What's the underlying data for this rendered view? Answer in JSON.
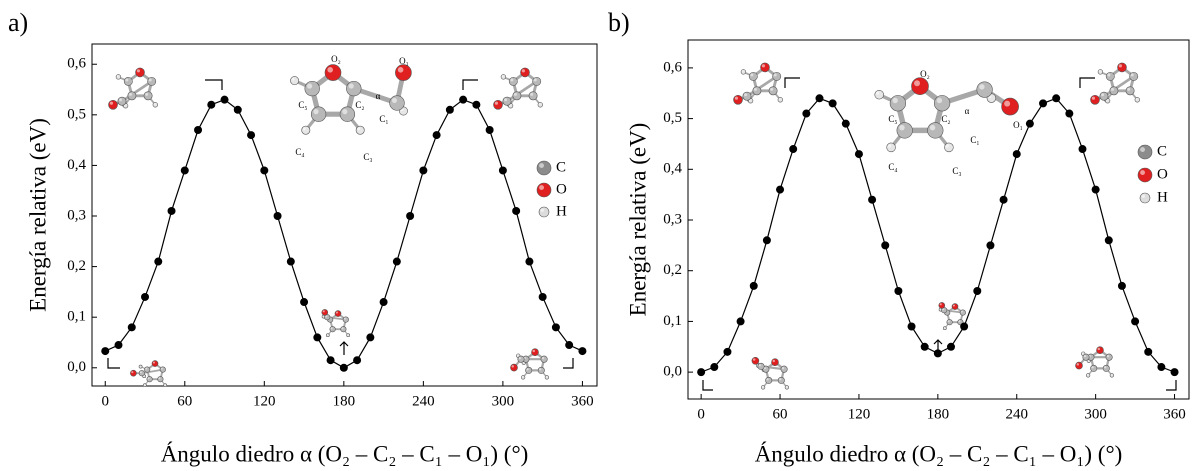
{
  "chart_data": [
    {
      "type": "line",
      "title": "a)",
      "x_label": "Ángulo diedro α (O₂ – C₂ – C₁ – O₁) (°)",
      "y_label": "Energía relativa (eV)",
      "x": [
        0,
        10,
        20,
        30,
        40,
        50,
        60,
        70,
        80,
        90,
        100,
        110,
        120,
        130,
        140,
        150,
        160,
        170,
        180,
        190,
        200,
        210,
        220,
        230,
        240,
        250,
        260,
        270,
        280,
        290,
        300,
        310,
        320,
        330,
        340,
        350,
        360
      ],
      "series": [
        {
          "color": "#000000",
          "values": [
            0.033,
            0.045,
            0.08,
            0.14,
            0.21,
            0.31,
            0.39,
            0.47,
            0.52,
            0.53,
            0.51,
            0.46,
            0.39,
            0.3,
            0.21,
            0.13,
            0.06,
            0.015,
            0.0,
            0.015,
            0.06,
            0.13,
            0.21,
            0.3,
            0.39,
            0.46,
            0.51,
            0.53,
            0.52,
            0.47,
            0.39,
            0.31,
            0.21,
            0.14,
            0.08,
            0.045,
            0.033
          ]
        }
      ],
      "xlim": [
        -10,
        371
      ],
      "xticks": [
        0,
        60,
        120,
        180,
        240,
        300,
        360
      ],
      "ylim": [
        -0.036,
        0.64
      ],
      "yticks": [
        {
          "value": 0,
          "label": "0,0"
        },
        {
          "value": 0.1,
          "label": "0,1"
        },
        {
          "value": 0.2,
          "label": "0,2"
        },
        {
          "value": 0.3,
          "label": "0,3"
        },
        {
          "value": 0.4,
          "label": "0,4"
        },
        {
          "value": 0.5,
          "label": "0,5"
        },
        {
          "value": 0.6,
          "label": "0,6"
        }
      ],
      "legend": [
        {
          "name": "C",
          "color": "#8c8c8c"
        },
        {
          "name": "O",
          "color": "#e02020"
        },
        {
          "name": "H",
          "color": "#dcdcdc"
        }
      ],
      "atom_labels": [
        "O₂",
        "C₅",
        "C₂",
        "α",
        "O₁",
        "C₁",
        "C₄",
        "C₃"
      ]
    },
    {
      "type": "line",
      "title": "b)",
      "x_label": "Ángulo diedro α (O₂ – C₂ – C₁ – O₁) (°)",
      "y_label": "Energía relativa (eV)",
      "x": [
        0,
        10,
        20,
        30,
        40,
        50,
        60,
        70,
        80,
        90,
        100,
        110,
        120,
        130,
        140,
        150,
        160,
        170,
        180,
        190,
        200,
        210,
        220,
        230,
        240,
        250,
        260,
        270,
        280,
        290,
        300,
        310,
        320,
        330,
        340,
        350,
        360
      ],
      "series": [
        {
          "color": "#000000",
          "values": [
            0.0,
            0.01,
            0.04,
            0.1,
            0.17,
            0.26,
            0.36,
            0.44,
            0.51,
            0.54,
            0.53,
            0.49,
            0.43,
            0.34,
            0.25,
            0.16,
            0.09,
            0.05,
            0.037,
            0.05,
            0.09,
            0.16,
            0.25,
            0.34,
            0.43,
            0.49,
            0.53,
            0.54,
            0.51,
            0.44,
            0.36,
            0.26,
            0.17,
            0.1,
            0.04,
            0.01,
            0.0
          ]
        }
      ],
      "xlim": [
        -10,
        371
      ],
      "xticks": [
        0,
        60,
        120,
        180,
        240,
        300,
        360
      ],
      "ylim": [
        -0.053,
        0.655
      ],
      "yticks": [
        {
          "value": 0,
          "label": "0,0"
        },
        {
          "value": 0.1,
          "label": "0,1"
        },
        {
          "value": 0.2,
          "label": "0,2"
        },
        {
          "value": 0.3,
          "label": "0,3"
        },
        {
          "value": 0.4,
          "label": "0,4"
        },
        {
          "value": 0.5,
          "label": "0,5"
        },
        {
          "value": 0.6,
          "label": "0,6"
        }
      ],
      "legend": [
        {
          "name": "C",
          "color": "#8c8c8c"
        },
        {
          "name": "O",
          "color": "#e02020"
        },
        {
          "name": "H",
          "color": "#dcdcdc"
        }
      ],
      "atom_labels": [
        "O₂",
        "C₅",
        "C₂",
        "α",
        "C₁",
        "O₁",
        "C₄",
        "C₃"
      ]
    }
  ]
}
